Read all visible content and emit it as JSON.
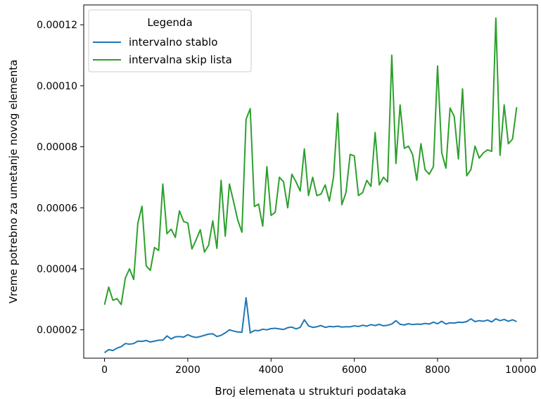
{
  "chart_data": {
    "type": "line",
    "title": "",
    "xlabel": "Broj elemenata u strukturi podataka",
    "ylabel": "Vreme potrebno za umetanje novog elementa",
    "xlim": [
      -500,
      10400
    ],
    "ylim": [
      1.07e-05,
      0.0001265
    ],
    "xticks": [
      0,
      2000,
      4000,
      6000,
      8000,
      10000
    ],
    "xtick_labels": [
      "0",
      "2000",
      "4000",
      "6000",
      "8000",
      "10000"
    ],
    "yticks": [
      2e-05,
      4e-05,
      6e-05,
      8e-05,
      0.0001,
      0.00012
    ],
    "ytick_labels": [
      "0.00002",
      "0.00004",
      "0.00006",
      "0.00008",
      "0.00010",
      "0.00012"
    ],
    "grid": false,
    "legend": {
      "title": "Legenda",
      "placement": "top-left"
    },
    "series": [
      {
        "name": "intervalno stablo",
        "color": "#1f77b4",
        "x": [
          0,
          100,
          200,
          300,
          400,
          500,
          600,
          700,
          800,
          900,
          1000,
          1100,
          1200,
          1300,
          1400,
          1500,
          1600,
          1700,
          1800,
          1900,
          2000,
          2100,
          2200,
          2300,
          2400,
          2500,
          2600,
          2700,
          2800,
          2900,
          3000,
          3100,
          3200,
          3300,
          3400,
          3500,
          3600,
          3700,
          3800,
          3900,
          4000,
          4100,
          4200,
          4300,
          4400,
          4500,
          4600,
          4700,
          4800,
          4900,
          5000,
          5100,
          5200,
          5300,
          5400,
          5500,
          5600,
          5700,
          5800,
          5900,
          6000,
          6100,
          6200,
          6300,
          6400,
          6500,
          6600,
          6700,
          6800,
          6900,
          7000,
          7100,
          7200,
          7300,
          7400,
          7500,
          7600,
          7700,
          7800,
          7900,
          8000,
          8100,
          8200,
          8300,
          8400,
          8500,
          8600,
          8700,
          8800,
          8900,
          9000,
          9100,
          9200,
          9300,
          9400,
          9500,
          9600,
          9700,
          9800,
          9900
        ],
        "values": [
          1.25e-05,
          1.35e-05,
          1.32e-05,
          1.4e-05,
          1.45e-05,
          1.55e-05,
          1.53e-05,
          1.55e-05,
          1.63e-05,
          1.62e-05,
          1.65e-05,
          1.6e-05,
          1.63e-05,
          1.66e-05,
          1.66e-05,
          1.8e-05,
          1.7e-05,
          1.77e-05,
          1.78e-05,
          1.76e-05,
          1.84e-05,
          1.78e-05,
          1.75e-05,
          1.78e-05,
          1.82e-05,
          1.86e-05,
          1.87e-05,
          1.78e-05,
          1.82e-05,
          1.9e-05,
          2e-05,
          1.96e-05,
          1.93e-05,
          1.92e-05,
          3.05e-05,
          1.9e-05,
          1.98e-05,
          1.97e-05,
          2.02e-05,
          2e-05,
          2.04e-05,
          2.05e-05,
          2.03e-05,
          2.01e-05,
          2.07e-05,
          2.09e-05,
          2.03e-05,
          2.08e-05,
          2.33e-05,
          2.13e-05,
          2.08e-05,
          2.1e-05,
          2.14e-05,
          2.08e-05,
          2.11e-05,
          2.1e-05,
          2.12e-05,
          2.09e-05,
          2.1e-05,
          2.1e-05,
          2.13e-05,
          2.11e-05,
          2.15e-05,
          2.12e-05,
          2.17e-05,
          2.14e-05,
          2.18e-05,
          2.13e-05,
          2.15e-05,
          2.19e-05,
          2.3e-05,
          2.18e-05,
          2.16e-05,
          2.2e-05,
          2.17e-05,
          2.19e-05,
          2.18e-05,
          2.21e-05,
          2.19e-05,
          2.25e-05,
          2.2e-05,
          2.28e-05,
          2.19e-05,
          2.23e-05,
          2.22e-05,
          2.25e-05,
          2.24e-05,
          2.27e-05,
          2.36e-05,
          2.27e-05,
          2.3e-05,
          2.28e-05,
          2.32e-05,
          2.26e-05,
          2.36e-05,
          2.3e-05,
          2.34e-05,
          2.28e-05,
          2.33e-05,
          2.27e-05
        ]
      },
      {
        "name": "intervalna skip lista",
        "color": "#2ca02c",
        "x": [
          0,
          100,
          200,
          300,
          400,
          500,
          600,
          700,
          800,
          900,
          1000,
          1100,
          1200,
          1300,
          1400,
          1500,
          1600,
          1700,
          1800,
          1900,
          2000,
          2100,
          2200,
          2300,
          2400,
          2500,
          2600,
          2700,
          2800,
          2900,
          3000,
          3100,
          3200,
          3300,
          3400,
          3500,
          3600,
          3700,
          3800,
          3900,
          4000,
          4100,
          4200,
          4300,
          4400,
          4500,
          4600,
          4700,
          4800,
          4900,
          5000,
          5100,
          5200,
          5300,
          5400,
          5500,
          5600,
          5700,
          5800,
          5900,
          6000,
          6100,
          6200,
          6300,
          6400,
          6500,
          6600,
          6700,
          6800,
          6900,
          7000,
          7100,
          7200,
          7300,
          7400,
          7500,
          7600,
          7700,
          7800,
          7900,
          8000,
          8100,
          8200,
          8300,
          8400,
          8500,
          8600,
          8700,
          8800,
          8900,
          9000,
          9100,
          9200,
          9300,
          9400,
          9500,
          9600,
          9700,
          9800,
          9900
        ],
        "values": [
          2.82e-05,
          3.4e-05,
          2.97e-05,
          3.02e-05,
          2.83e-05,
          3.7e-05,
          4e-05,
          3.65e-05,
          5.5e-05,
          6.05e-05,
          4.1e-05,
          3.95e-05,
          4.7e-05,
          4.6e-05,
          6.78e-05,
          5.15e-05,
          5.3e-05,
          5.03e-05,
          5.9e-05,
          5.55e-05,
          5.5e-05,
          4.65e-05,
          4.95e-05,
          5.28e-05,
          4.55e-05,
          4.77e-05,
          5.57e-05,
          4.67e-05,
          6.9e-05,
          5.07e-05,
          6.78e-05,
          6.2e-05,
          5.6e-05,
          5.2e-05,
          8.9e-05,
          9.25e-05,
          6.04e-05,
          6.12e-05,
          5.4e-05,
          7.35e-05,
          5.75e-05,
          5.85e-05,
          7e-05,
          6.85e-05,
          6e-05,
          7.1e-05,
          6.85e-05,
          6.55e-05,
          7.93e-05,
          6.4e-05,
          7e-05,
          6.4e-05,
          6.45e-05,
          6.75e-05,
          6.22e-05,
          7e-05,
          9.1e-05,
          6.1e-05,
          6.5e-05,
          7.75e-05,
          7.7e-05,
          6.4e-05,
          6.5e-05,
          6.9e-05,
          6.7e-05,
          8.47e-05,
          6.75e-05,
          7e-05,
          6.85e-05,
          0.00011,
          7.45e-05,
          9.37e-05,
          7.95e-05,
          8.02e-05,
          7.75e-05,
          6.9e-05,
          8.1e-05,
          7.25e-05,
          7.1e-05,
          7.35e-05,
          0.0001065,
          7.8e-05,
          7.3e-05,
          9.27e-05,
          9e-05,
          7.6e-05,
          9.9e-05,
          7.05e-05,
          7.25e-05,
          8.02e-05,
          7.63e-05,
          7.8e-05,
          7.9e-05,
          7.85e-05,
          0.0001222,
          7.72e-05,
          9.37e-05,
          8.1e-05,
          8.25e-05,
          9.3e-05
        ]
      }
    ]
  }
}
